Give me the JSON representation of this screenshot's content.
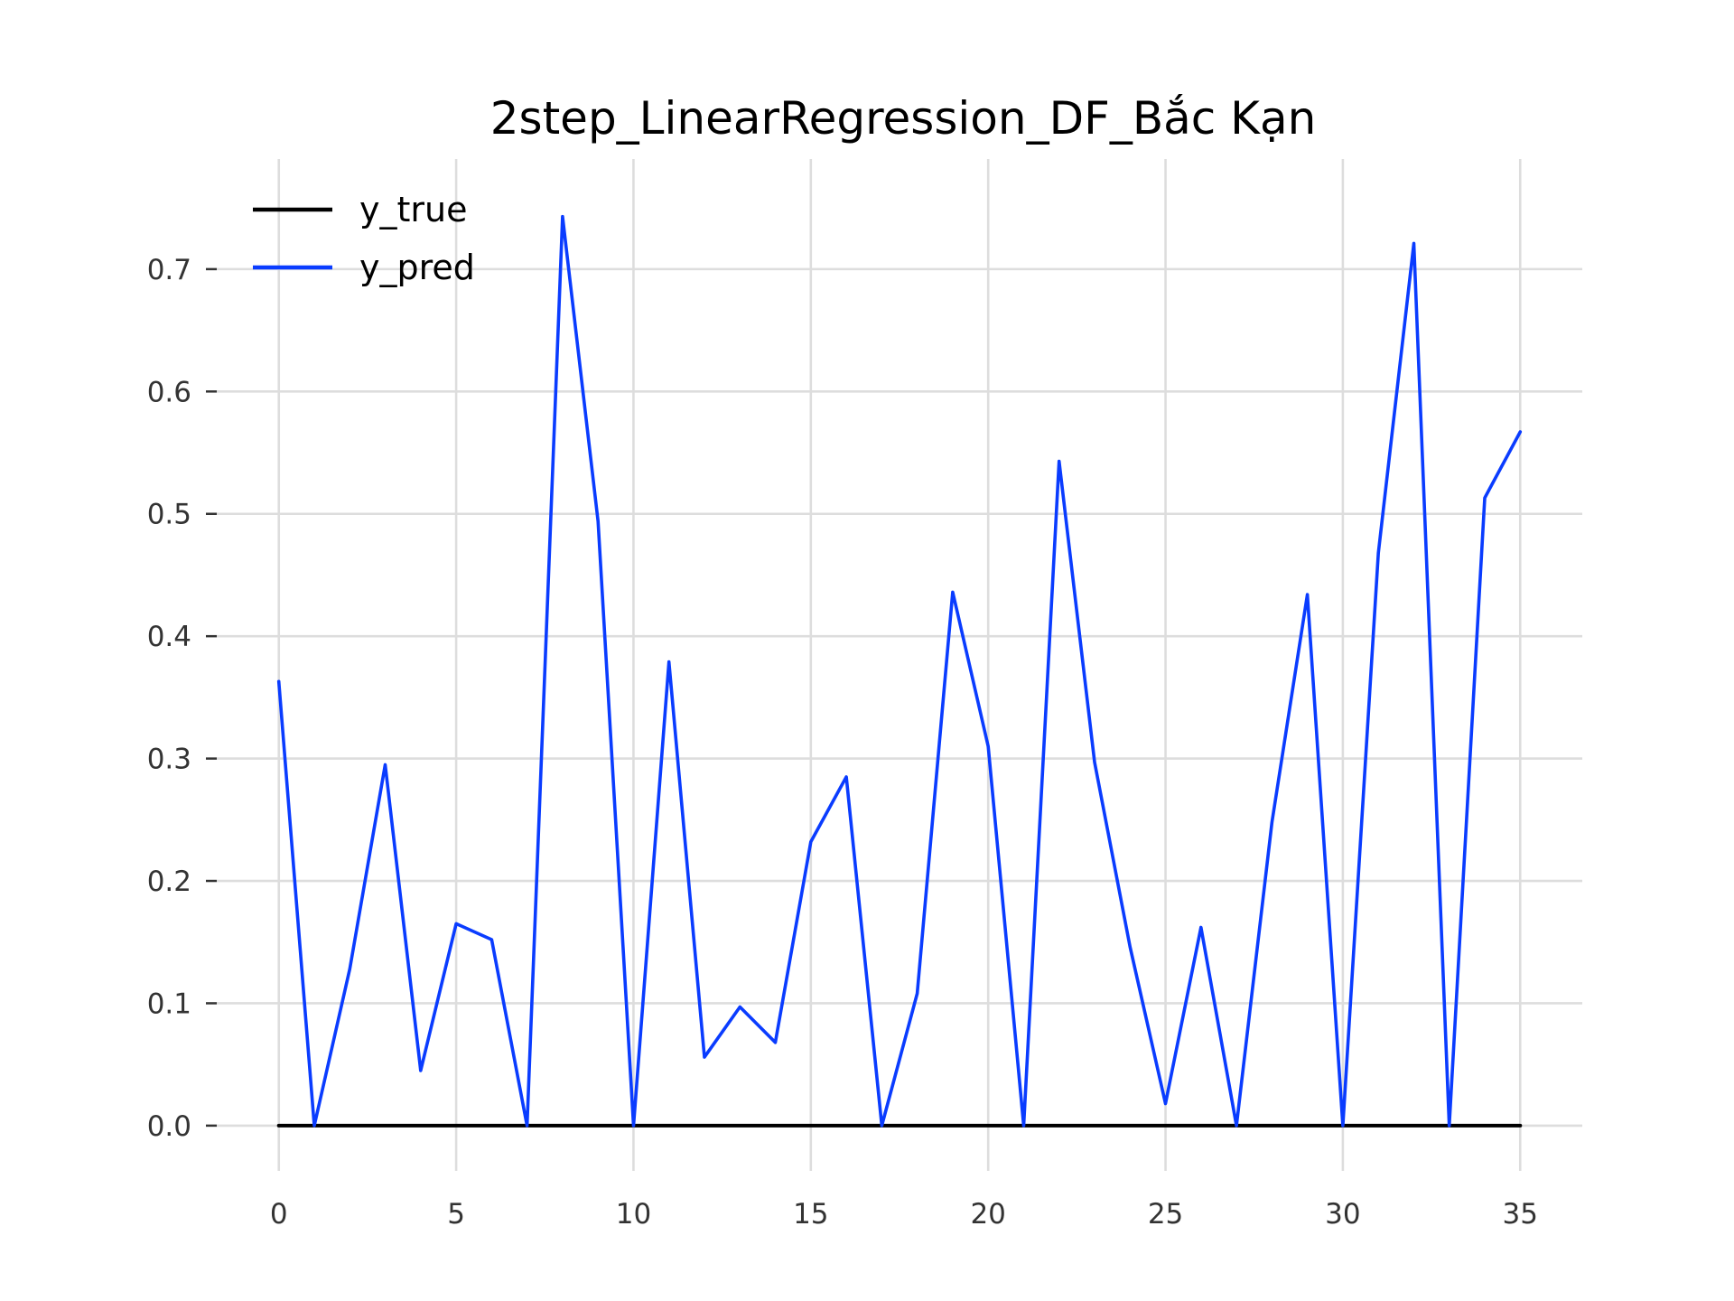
{
  "chart_data": {
    "type": "line",
    "title": "2step_LinearRegression_DF_Bắc Kạn",
    "xlabel": "",
    "ylabel": "",
    "xlim": [
      -1.75,
      36.75
    ],
    "ylim": [
      -0.037,
      0.79
    ],
    "xticks": [
      0,
      5,
      10,
      15,
      20,
      25,
      30,
      35
    ],
    "yticks": [
      0.0,
      0.1,
      0.2,
      0.3,
      0.4,
      0.5,
      0.6,
      0.7
    ],
    "ytick_labels": [
      "0.0",
      "0.1",
      "0.2",
      "0.3",
      "0.4",
      "0.5",
      "0.6",
      "0.7"
    ],
    "grid": true,
    "legend_position": "top-left",
    "x": [
      0,
      1,
      2,
      3,
      4,
      5,
      6,
      7,
      8,
      9,
      10,
      11,
      12,
      13,
      14,
      15,
      16,
      17,
      18,
      19,
      20,
      21,
      22,
      23,
      24,
      25,
      26,
      27,
      28,
      29,
      30,
      31,
      32,
      33,
      34,
      35
    ],
    "series": [
      {
        "name": "y_true",
        "color": "#000000",
        "values": [
          0,
          0,
          0,
          0,
          0,
          0,
          0,
          0,
          0,
          0,
          0,
          0,
          0,
          0,
          0,
          0,
          0,
          0,
          0,
          0,
          0,
          0,
          0,
          0,
          0,
          0,
          0,
          0,
          0,
          0,
          0,
          0,
          0,
          0,
          0,
          0
        ]
      },
      {
        "name": "y_pred",
        "color": "#0a3cff",
        "values": [
          0.363,
          0.0,
          0.128,
          0.295,
          0.045,
          0.165,
          0.152,
          0.0,
          0.743,
          0.494,
          0.0,
          0.379,
          0.056,
          0.097,
          0.068,
          0.232,
          0.285,
          0.0,
          0.108,
          0.436,
          0.31,
          0.0,
          0.543,
          0.297,
          0.146,
          0.018,
          0.162,
          0.0,
          0.248,
          0.434,
          0.0,
          0.468,
          0.721,
          0.0,
          0.513,
          0.567
        ]
      }
    ]
  }
}
